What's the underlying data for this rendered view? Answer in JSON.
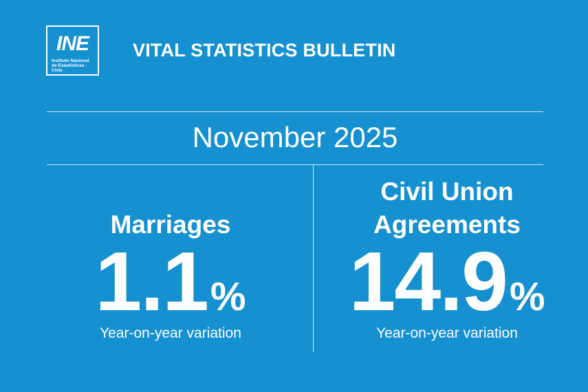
{
  "logo": {
    "mark": "INE",
    "caption": "Instituto Nacional de Estadísticas · Chile"
  },
  "header": {
    "title": "VITAL STATISTICS BULLETIN"
  },
  "period": "November 2025",
  "panels": [
    {
      "label": [
        "Marriages"
      ],
      "value": 1.1,
      "unit": "%",
      "caption": "Year-on-year variation"
    },
    {
      "label": [
        "Civil Union",
        "Agreements"
      ],
      "value": 14.9,
      "unit": "%",
      "caption": "Year-on-year variation"
    }
  ]
}
